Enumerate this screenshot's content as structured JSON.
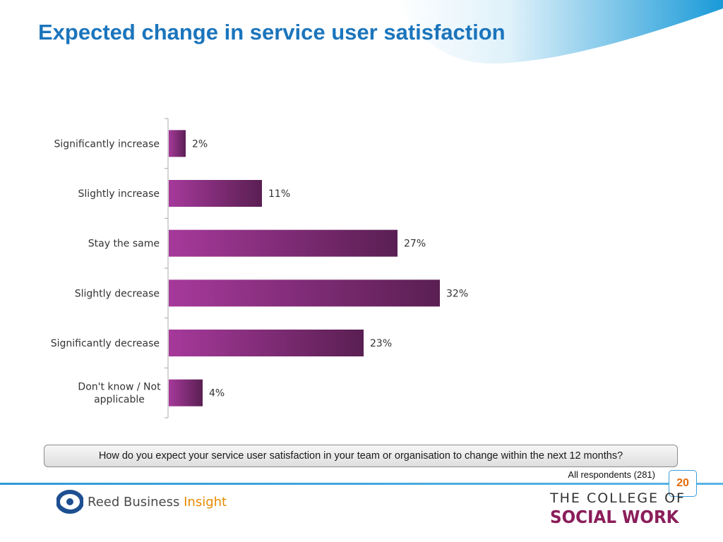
{
  "slide": {
    "title": "Expected change in service user satisfaction",
    "question": "How do you expect your service user satisfaction in your team or organisation to change within the next 12 months?",
    "respondents": "All respondents (281)",
    "page_number": "20"
  },
  "branding": {
    "left_logo": {
      "name": "Reed Business",
      "accent": "Insight"
    },
    "right_logo": {
      "line1": "THE COLLEGE OF",
      "line2": "SOCIAL WORK"
    }
  },
  "colors": {
    "title": "#1b75bc",
    "bar_start": "#a6399b",
    "bar_end": "#5a1f52",
    "accent_line": "#2e9ad6",
    "page_number": "#e46c0a"
  },
  "chart_data": {
    "type": "bar",
    "orientation": "horizontal",
    "categories": [
      [
        "Significantly increase"
      ],
      [
        "Slightly increase"
      ],
      [
        "Stay the same"
      ],
      [
        "Slightly decrease"
      ],
      [
        "Significantly decrease"
      ],
      [
        "Don't know / Not",
        "applicable"
      ]
    ],
    "values": [
      2,
      11,
      27,
      32,
      23,
      4
    ],
    "value_labels": [
      "2%",
      "11%",
      "27%",
      "32%",
      "23%",
      "4%"
    ],
    "unit": "%",
    "xlim": [
      0,
      32
    ],
    "grid": false,
    "legend": "none"
  }
}
